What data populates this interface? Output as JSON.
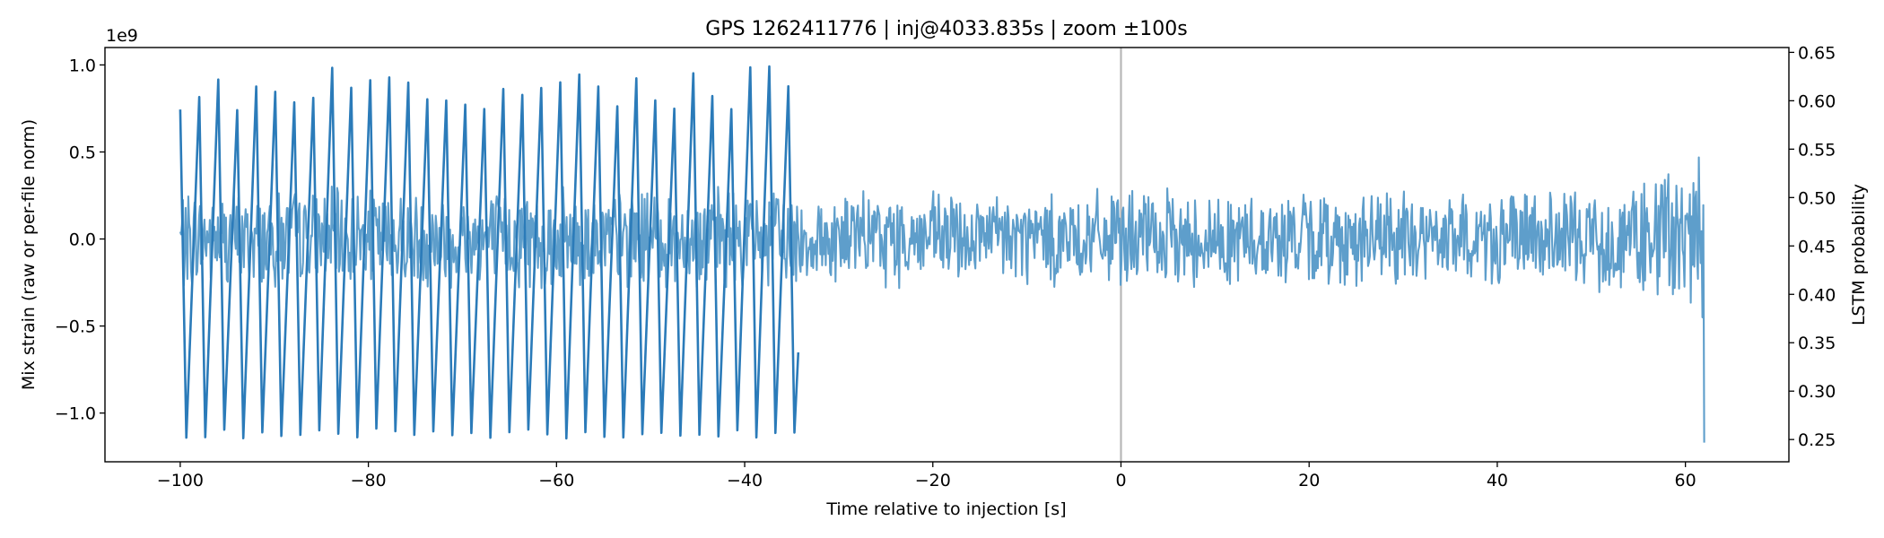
{
  "chart_data": {
    "type": "line",
    "title": "GPS 1262411776 | inj@4033.835s | zoom ±100s",
    "xlabel": "Time relative to injection [s]",
    "ylabel": "Mix strain (raw or per-file norm)",
    "y2label": "LSTM probability",
    "offset_text": "1e9",
    "xlim": [
      -108,
      71
    ],
    "ylim": [
      -1.28,
      1.1
    ],
    "y2lim": [
      0.227,
      0.655
    ],
    "xticks": [
      -100,
      -80,
      -60,
      -40,
      -20,
      0,
      20,
      40,
      60
    ],
    "xtick_labels": [
      "−100",
      "−80",
      "−60",
      "−40",
      "−20",
      "0",
      "20",
      "40",
      "60"
    ],
    "yticks": [
      1.0,
      0.5,
      0.0,
      -0.5,
      -1.0
    ],
    "ytick_labels": [
      "1.0",
      "0.5",
      "0.0",
      "−0.5",
      "−1.0"
    ],
    "y2ticks": [
      0.65,
      0.6,
      0.55,
      0.5,
      0.45,
      0.4,
      0.35,
      0.3,
      0.25
    ],
    "y2tick_labels": [
      "0.65",
      "0.60",
      "0.55",
      "0.50",
      "0.45",
      "0.40",
      "0.35",
      "0.30",
      "0.25"
    ],
    "vline_x": 0,
    "colors": {
      "lstm": "#2b7bb9",
      "strain": "#5e9ecb",
      "vline": "#b8b8b8",
      "axis": "#000000"
    },
    "series": [
      {
        "name": "LSTM probability",
        "axis": "right",
        "x_range": [
          -100,
          -34.3
        ],
        "oscillation_period_s": 2.02,
        "peak_range": [
          0.589,
          0.636
        ],
        "trough_range": [
          0.251,
          0.262
        ]
      },
      {
        "name": "Mix strain",
        "axis": "left",
        "x_range": [
          -100,
          62
        ],
        "typical_amplitude": 0.3,
        "peak_amplitude_near_end": 0.55,
        "end_spike_x": 62,
        "end_spike_min": -1.17
      }
    ]
  }
}
